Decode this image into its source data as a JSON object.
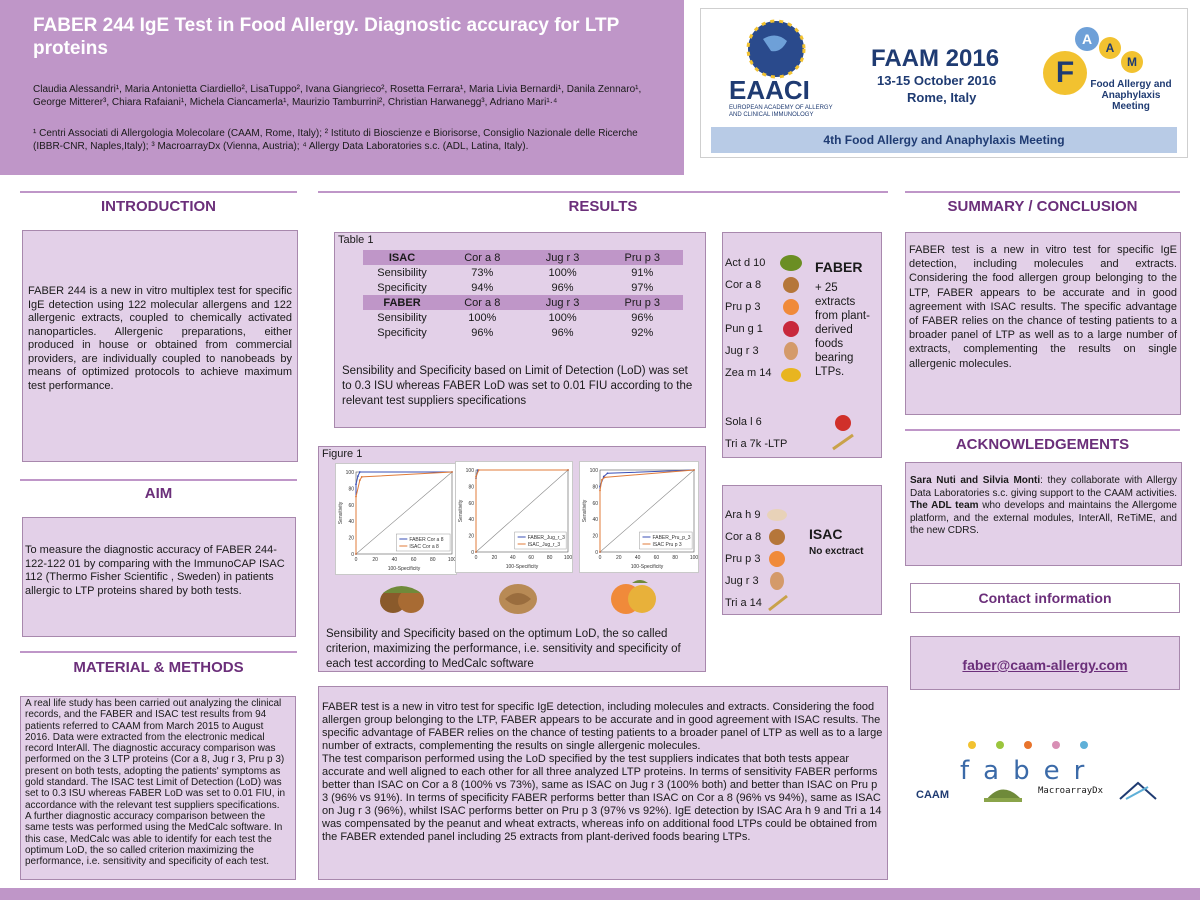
{
  "header": {
    "title": "FABER 244 IgE Test in Food Allergy. Diagnostic accuracy for LTP proteins",
    "authors": "Claudia Alessandri¹, Maria Antonietta Ciardiello², LisaTuppo², Ivana Giangrieco², Rosetta Ferrara¹, Maria Livia Bernardi¹, Danila Zennaro¹, George Mitterer³, Chiara Rafaiani¹, Michela Ciancamerla¹, Maurizio Tamburrini², Christian Harwanegg³, Adriano Mari¹·⁴",
    "affiliations": "¹ Centri Associati di Allergologia Molecolare (CAAM, Rome, Italy); ² Istituto di Bioscienze e Biorisorse, Consiglio Nazionale delle Ricerche (IBBR-CNR, Naples,Italy); ³ MacroarrayDx (Vienna, Austria); ⁴ Allergy Data Laboratories s.c. (ADL, Latina, Italy)."
  },
  "banner": {
    "eaaci": "EAACI",
    "eaaci_sub": "EUROPEAN ACADEMY OF ALLERGY AND CLINICAL IMMUNOLOGY",
    "event": "FAAM 2016",
    "dates": "13-15 October 2016",
    "place": "Rome, Italy",
    "logo_letters": [
      "F",
      "A",
      "A",
      "M"
    ],
    "logo_caption": "Food Allergy and Anaphylaxis Meeting",
    "meeting": "4th Food Allergy and Anaphylaxis Meeting"
  },
  "introduction": {
    "title": "INTRODUCTION",
    "text": "FABER 244 is a new in vitro multiplex test for specific IgE detection using 122 molecular allergens and 122 allergenic extracts, coupled to chemically activated nanoparticles. Allergenic preparations, either produced in house or obtained from commercial providers, are individually coupled to nanobeads by means of optimized protocols to achieve maximum test performance."
  },
  "aim": {
    "title": "AIM",
    "text": "To measure the diagnostic accuracy of FABER 244-122-122 01 by comparing with the ImmunoCAP ISAC 112 (Thermo Fisher Scientific , Sweden) in patients allergic to LTP proteins shared by both tests."
  },
  "methods": {
    "title": "MATERIAL & METHODS",
    "text": "A real life study has been carried out analyzing the clinical records, and the FABER and ISAC test results from 94 patients referred to CAAM from March 2015 to August 2016. Data were extracted from the electronic medical record InterAll. The diagnostic accuracy comparison was performed on the 3 LTP proteins (Cor a 8, Jug r 3, Pru p 3) present on both tests, adopting the patients' symptoms as gold standard. The ISAC test Limit of Detection (LoD) was set to 0.3 ISU whereas FABER LoD was set to 0.01 FIU, in accordance with the relevant test suppliers specifications.",
    "text2": "A further diagnostic accuracy comparison between the same tests was performed using the MedCalc software. In this case, MedCalc was able to identify for each test the optimum LoD, the so called criterion maximizing the performance, i.e. sensitivity and specificity of each test."
  },
  "results": {
    "title": "RESULTS",
    "table_label": "Table 1",
    "table": {
      "isac_header": [
        "ISAC",
        "Cor a 8",
        "Jug r 3",
        "Pru p 3"
      ],
      "isac_rows": [
        [
          "Sensibility",
          "73%",
          "100%",
          "91%"
        ],
        [
          "Specificity",
          "94%",
          "96%",
          "97%"
        ]
      ],
      "faber_header": [
        "FABER",
        "Cor a 8",
        "Jug r 3",
        "Pru p 3"
      ],
      "faber_rows": [
        [
          "Sensibility",
          "100%",
          "100%",
          "96%"
        ],
        [
          "Specificity",
          "96%",
          "96%",
          "92%"
        ]
      ]
    },
    "table_caption": "Sensibility and Specificity based on Limit of Detection (LoD) was set to 0.3 ISU whereas FABER LoD was set to 0.01 FIU according to the relevant test suppliers specifications",
    "figure_label": "Figure 1",
    "figure_caption": "Sensibility and Specificity based on the optimum LoD, the so called criterion, maximizing the performance, i.e. sensitivity and specificity of each test according to MedCalc software",
    "discussion": "FABER test is a new in vitro test for specific IgE detection, including molecules and extracts. Considering the food allergen group belonging to the LTP, FABER appears to be accurate and in good agreement with ISAC results. The specific advantage of FABER relies on the chance of testing patients to a broader panel of LTP as well as to a large number of extracts, complementing the results on single allergenic molecules.",
    "discussion2": "The test comparison performed using the LoD specified by the test suppliers indicates that both tests appear accurate and well aligned to each other for all three analyzed LTP proteins. In terms of sensitivity FABER performs better than ISAC on Cor a 8 (100% vs 73%), same as ISAC on Jug r 3 (100% both) and better than ISAC on Pru p 3 (96% vs 91%). In terms of specificity FABER performs better than ISAC on Cor a 8 (96% vs 94%), same as ISAC on Jug r 3 (96%), whilst ISAC performs better on Pru p 3 (97% vs 92%). IgE detection by ISAC Ara h 9 and Tri a 14 was compensated by the peanut and wheat extracts, whereas info on additional food LTPs could be obtained from the FABER extended panel including 25 extracts from plant-derived foods bearing LTPs."
  },
  "chart_data": [
    {
      "type": "line",
      "ylabel": "Sensitivity",
      "xlabel": "100-Specificity",
      "xticks": [
        "0",
        "20",
        "40",
        "60",
        "80",
        "100"
      ],
      "yticks": [
        "0",
        "20",
        "40",
        "60",
        "80",
        "100"
      ],
      "xlim": [
        0,
        100
      ],
      "ylim": [
        0,
        100
      ],
      "legend": "bottom-right",
      "series": [
        {
          "name": "FABER Cor a 8",
          "color": "#3a4fb5",
          "x": [
            0,
            0,
            2,
            4,
            100
          ],
          "y": [
            0,
            85,
            95,
            100,
            100
          ]
        },
        {
          "name": "ISAC Cor a 8",
          "color": "#e07b39",
          "x": [
            0,
            0,
            4,
            6,
            100
          ],
          "y": [
            0,
            70,
            90,
            94,
            100
          ]
        }
      ]
    },
    {
      "type": "line",
      "ylabel": "Sensitivity",
      "xlabel": "100-Specificity",
      "xticks": [
        "0",
        "20",
        "40",
        "60",
        "80",
        "100"
      ],
      "yticks": [
        "0",
        "20",
        "40",
        "60",
        "80",
        "100"
      ],
      "xlim": [
        0,
        100
      ],
      "ylim": [
        0,
        100
      ],
      "legend": "bottom-right",
      "series": [
        {
          "name": "FABER_Jug_r_3",
          "color": "#3a4fb5",
          "x": [
            0,
            0,
            2,
            100
          ],
          "y": [
            0,
            90,
            100,
            100
          ]
        },
        {
          "name": "ISAC_Jug_r_3",
          "color": "#e07b39",
          "x": [
            0,
            0,
            3,
            100
          ],
          "y": [
            0,
            92,
            100,
            100
          ]
        }
      ]
    },
    {
      "type": "line",
      "ylabel": "Sensitivity",
      "xlabel": "100-Specificity",
      "xticks": [
        "0",
        "20",
        "40",
        "60",
        "80",
        "100"
      ],
      "yticks": [
        "0",
        "20",
        "40",
        "60",
        "80",
        "100"
      ],
      "xlim": [
        0,
        100
      ],
      "ylim": [
        0,
        100
      ],
      "legend": "bottom-right",
      "series": [
        {
          "name": "FABER_Pru_p_3",
          "color": "#3a4fb5",
          "x": [
            0,
            0,
            4,
            8,
            100
          ],
          "y": [
            0,
            80,
            92,
            96,
            100
          ]
        },
        {
          "name": "ISAC Pru p 3",
          "color": "#e07b39",
          "x": [
            0,
            0,
            2,
            5,
            100
          ],
          "y": [
            0,
            75,
            88,
            91,
            100
          ]
        }
      ]
    }
  ],
  "faber_panel": {
    "foods": [
      "Act d 10",
      "Cor a 8",
      "Pru p 3",
      "Pun g 1",
      "Jug r 3",
      "Zea m 14"
    ],
    "foods2": [
      "Sola l 6",
      "Tri a 7k -LTP"
    ],
    "title": "FABER",
    "subtitle": "+ 25 extracts from plant-derived foods bearing LTPs."
  },
  "isac_panel": {
    "foods": [
      "Ara h 9",
      "Cor a 8",
      "Pru p 3",
      "Jug r 3",
      "Tri a 14"
    ],
    "title": "ISAC",
    "subtitle": "No exctract"
  },
  "summary": {
    "title": "SUMMARY / CONCLUSION",
    "text": "FABER test is a new in vitro test for specific IgE detection, including molecules and extracts. Considering the food allergen group belonging to the LTP, FABER appears to be accurate and in good agreement with ISAC results. The specific advantage of FABER relies on the chance of testing patients to a broader panel of LTP as well as to a large number of extracts, complementing the results on single allergenic molecules."
  },
  "acknowledgements": {
    "title": "ACKNOWLEDGEMENTS",
    "names": "Sara Nuti  and Silvia Monti",
    "text1": ": they collaborate with Allergy Data Laboratories s.c. giving support to the CAAM activities. ",
    "team": "The ADL team",
    "text2": " who develops and maintains the Allergome platform, and the external modules, InterAll, ReTiME, and the new CDRS."
  },
  "contact": {
    "title": "Contact information",
    "email": "faber@caam-allergy.com"
  },
  "logos": {
    "faber": "faber",
    "caam": "CAAM",
    "macroarray": "MacroarrayDx",
    "dot_colors": [
      "#f2c230",
      "#9bc53d",
      "#e8742c",
      "#d88fb5",
      "#5fb0d8"
    ]
  }
}
